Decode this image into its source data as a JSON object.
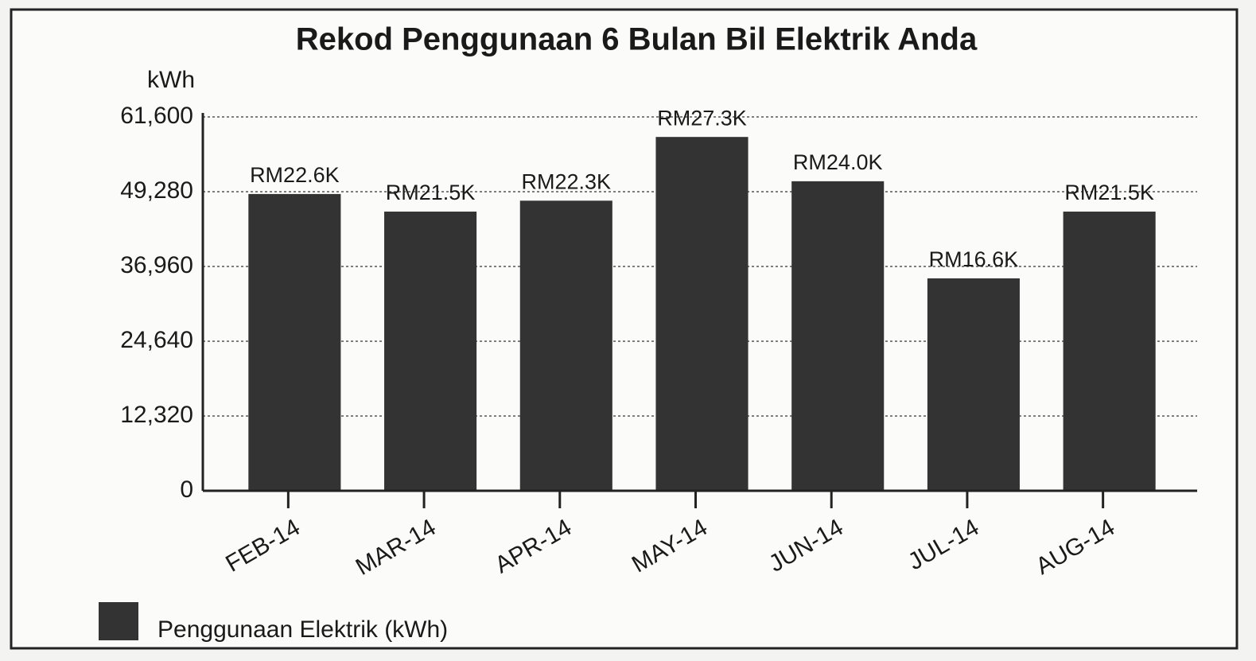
{
  "chart_data": {
    "type": "bar",
    "title": "Rekod Penggunaan 6 Bulan Bil Elektrik Anda",
    "y_label": "kWh",
    "categories": [
      "FEB-14",
      "MAR-14",
      "APR-14",
      "MAY-14",
      "JUN-14",
      "JUL-14",
      "AUG-14"
    ],
    "series": [
      {
        "name": "Penggunaan Elektrik (kWh)",
        "color": "#333333",
        "values": [
          48900,
          46000,
          47800,
          58300,
          51000,
          35000,
          46000
        ]
      }
    ],
    "annotations": [
      "RM22.6K",
      "RM21.5K",
      "RM22.3K",
      "RM27.3K",
      "RM24.0K",
      "RM16.6K",
      "RM21.5K"
    ],
    "ylim": [
      0,
      61600
    ],
    "yticks": [
      0,
      {
        "value": 12320,
        "label": "12,320"
      },
      {
        "value": 24640,
        "label": "24,640"
      },
      {
        "value": 36960,
        "label": "36,960"
      },
      {
        "value": 49280,
        "label": "49,280"
      },
      {
        "value": 61600,
        "label": "61,600"
      }
    ],
    "grid": true,
    "legend": "bottom-left"
  }
}
